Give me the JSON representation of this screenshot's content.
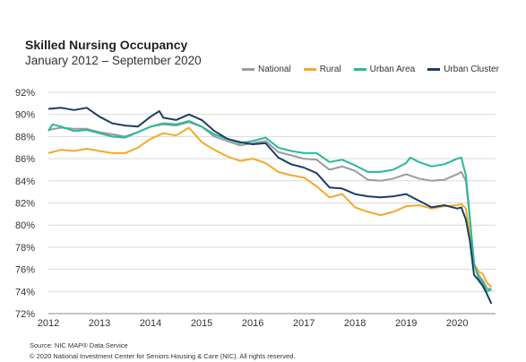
{
  "chart_data": {
    "type": "line",
    "title": "Skilled Nursing Occupancy",
    "subtitle": "January 2012 – September 2020",
    "xlabel": "",
    "ylabel": "",
    "x_ticks": [
      "2012",
      "2013",
      "2014",
      "2015",
      "2016",
      "2017",
      "2018",
      "2019",
      "2020"
    ],
    "y_ticks": [
      "72%",
      "74%",
      "76%",
      "78%",
      "80%",
      "82%",
      "84%",
      "86%",
      "88%",
      "90%",
      "92%"
    ],
    "ylim": [
      72,
      92
    ],
    "xlim": [
      2012.0,
      2020.75
    ],
    "grid": "horizontal",
    "legend_position": "top-right",
    "colors": {
      "National": "#9b9b9b",
      "Rural": "#f2aa2b",
      "Urban Area": "#26b99a",
      "Urban Cluster": "#1c3f63"
    },
    "series": [
      {
        "name": "National",
        "points": [
          [
            2012.0,
            88.6
          ],
          [
            2012.25,
            88.8
          ],
          [
            2012.5,
            88.7
          ],
          [
            2012.75,
            88.7
          ],
          [
            2013.0,
            88.4
          ],
          [
            2013.25,
            88.2
          ],
          [
            2013.5,
            88.0
          ],
          [
            2013.75,
            88.4
          ],
          [
            2014.0,
            88.9
          ],
          [
            2014.25,
            89.1
          ],
          [
            2014.5,
            89.0
          ],
          [
            2014.75,
            89.3
          ],
          [
            2015.0,
            88.9
          ],
          [
            2015.25,
            88.0
          ],
          [
            2015.5,
            87.6
          ],
          [
            2015.75,
            87.2
          ],
          [
            2016.0,
            87.4
          ],
          [
            2016.25,
            87.6
          ],
          [
            2016.5,
            86.6
          ],
          [
            2016.75,
            86.3
          ],
          [
            2017.0,
            86.0
          ],
          [
            2017.25,
            85.9
          ],
          [
            2017.5,
            85.0
          ],
          [
            2017.75,
            85.3
          ],
          [
            2018.0,
            84.9
          ],
          [
            2018.25,
            84.1
          ],
          [
            2018.5,
            84.0
          ],
          [
            2018.75,
            84.2
          ],
          [
            2019.0,
            84.6
          ],
          [
            2019.25,
            84.2
          ],
          [
            2019.5,
            84.0
          ],
          [
            2019.75,
            84.1
          ],
          [
            2020.0,
            84.6
          ],
          [
            2020.08,
            84.8
          ],
          [
            2020.17,
            84.0
          ],
          [
            2020.25,
            80.5
          ],
          [
            2020.33,
            76.5
          ],
          [
            2020.42,
            75.5
          ],
          [
            2020.5,
            75.0
          ],
          [
            2020.58,
            74.3
          ],
          [
            2020.67,
            74.2
          ]
        ]
      },
      {
        "name": "Rural",
        "points": [
          [
            2012.0,
            86.5
          ],
          [
            2012.25,
            86.8
          ],
          [
            2012.5,
            86.7
          ],
          [
            2012.75,
            86.9
          ],
          [
            2013.0,
            86.7
          ],
          [
            2013.25,
            86.5
          ],
          [
            2013.5,
            86.5
          ],
          [
            2013.75,
            87.0
          ],
          [
            2014.0,
            87.8
          ],
          [
            2014.25,
            88.3
          ],
          [
            2014.5,
            88.1
          ],
          [
            2014.75,
            88.8
          ],
          [
            2015.0,
            87.5
          ],
          [
            2015.25,
            86.8
          ],
          [
            2015.5,
            86.2
          ],
          [
            2015.75,
            85.8
          ],
          [
            2016.0,
            86.0
          ],
          [
            2016.25,
            85.6
          ],
          [
            2016.5,
            84.8
          ],
          [
            2016.75,
            84.5
          ],
          [
            2017.0,
            84.3
          ],
          [
            2017.25,
            83.5
          ],
          [
            2017.5,
            82.5
          ],
          [
            2017.75,
            82.8
          ],
          [
            2018.0,
            81.6
          ],
          [
            2018.25,
            81.2
          ],
          [
            2018.5,
            80.9
          ],
          [
            2018.75,
            81.2
          ],
          [
            2019.0,
            81.7
          ],
          [
            2019.25,
            81.8
          ],
          [
            2019.5,
            81.5
          ],
          [
            2019.75,
            81.7
          ],
          [
            2020.0,
            81.8
          ],
          [
            2020.08,
            81.9
          ],
          [
            2020.17,
            81.5
          ],
          [
            2020.25,
            79.0
          ],
          [
            2020.33,
            76.5
          ],
          [
            2020.42,
            75.8
          ],
          [
            2020.5,
            75.6
          ],
          [
            2020.58,
            74.8
          ],
          [
            2020.67,
            74.4
          ]
        ]
      },
      {
        "name": "Urban Area",
        "points": [
          [
            2012.0,
            88.5
          ],
          [
            2012.08,
            89.1
          ],
          [
            2012.25,
            88.9
          ],
          [
            2012.5,
            88.5
          ],
          [
            2012.75,
            88.6
          ],
          [
            2013.0,
            88.3
          ],
          [
            2013.25,
            88.0
          ],
          [
            2013.5,
            87.9
          ],
          [
            2013.75,
            88.4
          ],
          [
            2014.0,
            88.9
          ],
          [
            2014.25,
            89.2
          ],
          [
            2014.5,
            89.1
          ],
          [
            2014.75,
            89.4
          ],
          [
            2015.0,
            88.9
          ],
          [
            2015.25,
            88.2
          ],
          [
            2015.5,
            87.8
          ],
          [
            2015.75,
            87.4
          ],
          [
            2016.0,
            87.6
          ],
          [
            2016.25,
            87.9
          ],
          [
            2016.5,
            87.0
          ],
          [
            2016.75,
            86.7
          ],
          [
            2017.0,
            86.5
          ],
          [
            2017.25,
            86.5
          ],
          [
            2017.5,
            85.7
          ],
          [
            2017.75,
            85.9
          ],
          [
            2018.0,
            85.4
          ],
          [
            2018.25,
            84.8
          ],
          [
            2018.5,
            84.8
          ],
          [
            2018.75,
            85.0
          ],
          [
            2019.0,
            85.6
          ],
          [
            2019.08,
            86.1
          ],
          [
            2019.25,
            85.7
          ],
          [
            2019.5,
            85.3
          ],
          [
            2019.75,
            85.5
          ],
          [
            2020.0,
            86.0
          ],
          [
            2020.08,
            86.1
          ],
          [
            2020.17,
            84.5
          ],
          [
            2020.25,
            80.5
          ],
          [
            2020.33,
            76.5
          ],
          [
            2020.42,
            75.2
          ],
          [
            2020.5,
            74.8
          ],
          [
            2020.58,
            74.0
          ],
          [
            2020.67,
            74.2
          ]
        ]
      },
      {
        "name": "Urban Cluster",
        "points": [
          [
            2012.0,
            90.5
          ],
          [
            2012.25,
            90.6
          ],
          [
            2012.5,
            90.4
          ],
          [
            2012.75,
            90.6
          ],
          [
            2013.0,
            89.8
          ],
          [
            2013.25,
            89.2
          ],
          [
            2013.5,
            89.0
          ],
          [
            2013.75,
            88.9
          ],
          [
            2014.0,
            89.8
          ],
          [
            2014.17,
            90.3
          ],
          [
            2014.25,
            89.7
          ],
          [
            2014.5,
            89.5
          ],
          [
            2014.75,
            90.0
          ],
          [
            2015.0,
            89.5
          ],
          [
            2015.25,
            88.5
          ],
          [
            2015.5,
            87.8
          ],
          [
            2015.75,
            87.5
          ],
          [
            2016.0,
            87.3
          ],
          [
            2016.25,
            87.4
          ],
          [
            2016.5,
            86.1
          ],
          [
            2016.75,
            85.5
          ],
          [
            2017.0,
            85.2
          ],
          [
            2017.25,
            84.7
          ],
          [
            2017.5,
            83.4
          ],
          [
            2017.75,
            83.3
          ],
          [
            2018.0,
            82.8
          ],
          [
            2018.25,
            82.6
          ],
          [
            2018.5,
            82.5
          ],
          [
            2018.75,
            82.6
          ],
          [
            2019.0,
            82.8
          ],
          [
            2019.25,
            82.2
          ],
          [
            2019.5,
            81.6
          ],
          [
            2019.75,
            81.8
          ],
          [
            2020.0,
            81.5
          ],
          [
            2020.08,
            81.6
          ],
          [
            2020.17,
            80.5
          ],
          [
            2020.25,
            78.5
          ],
          [
            2020.33,
            75.5
          ],
          [
            2020.42,
            75.0
          ],
          [
            2020.5,
            74.5
          ],
          [
            2020.58,
            73.8
          ],
          [
            2020.67,
            72.9
          ]
        ]
      }
    ]
  },
  "footer": {
    "source": "Source:  NIC MAP® Data Service",
    "copyright": "© 2020  National  Investment  Center  for  Seniors  Housing  &  Care (NIC).  All rights  reserved."
  }
}
